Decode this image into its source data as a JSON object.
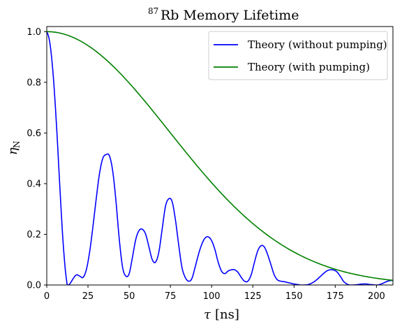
{
  "chart_data": {
    "type": "line",
    "title": {
      "superscript": "87",
      "text": "Rb Memory Lifetime"
    },
    "xlabel": {
      "symbol": "τ",
      "unit": "[ns]"
    },
    "ylabel": {
      "symbol": "η",
      "subscript": "N"
    },
    "xlim": [
      0,
      210
    ],
    "ylim": [
      0,
      1.02
    ],
    "x_ticks": [
      0,
      25,
      50,
      75,
      100,
      125,
      150,
      175,
      200
    ],
    "x_tick_labels": [
      "0",
      "25",
      "50",
      "75",
      "100",
      "125",
      "150",
      "175",
      "200"
    ],
    "y_ticks": [
      0,
      0.2,
      0.4,
      0.6,
      0.8,
      1.0
    ],
    "y_tick_labels": [
      "0.0",
      "0.2",
      "0.4",
      "0.6",
      "0.8",
      "1.0"
    ],
    "grid": false,
    "legend_position": "top-right",
    "series": [
      {
        "name": "Theory (without pumping)",
        "color": "#0000ff",
        "x": [
          0,
          2,
          4,
          6,
          8,
          10,
          12,
          13,
          14,
          16,
          18,
          20,
          22,
          24,
          26,
          28,
          30,
          32,
          34,
          36,
          38,
          40,
          42,
          44,
          46,
          48,
          50,
          52,
          54,
          56,
          58,
          60,
          62,
          64,
          66,
          68,
          70,
          72,
          74,
          76,
          78,
          80,
          82,
          84,
          86,
          88,
          90,
          92,
          94,
          96,
          98,
          100,
          102,
          104,
          106,
          108,
          110,
          112,
          114,
          116,
          118,
          120,
          122,
          124,
          126,
          128,
          130,
          132,
          134,
          136,
          138,
          140,
          142,
          144,
          146,
          148,
          150,
          152,
          154,
          156,
          158,
          160,
          162,
          164,
          166,
          168,
          170,
          172,
          174,
          176,
          178,
          180,
          182,
          184,
          186,
          188,
          190,
          192,
          194,
          196,
          198,
          200,
          202,
          204,
          206,
          208,
          210
        ],
        "y": [
          1.0,
          0.95,
          0.82,
          0.62,
          0.38,
          0.16,
          0.02,
          0.0,
          0.005,
          0.025,
          0.04,
          0.035,
          0.03,
          0.06,
          0.13,
          0.23,
          0.34,
          0.44,
          0.5,
          0.515,
          0.51,
          0.45,
          0.33,
          0.18,
          0.07,
          0.035,
          0.045,
          0.11,
          0.18,
          0.215,
          0.22,
          0.2,
          0.15,
          0.1,
          0.09,
          0.13,
          0.22,
          0.31,
          0.34,
          0.33,
          0.26,
          0.16,
          0.07,
          0.03,
          0.015,
          0.025,
          0.07,
          0.12,
          0.16,
          0.185,
          0.19,
          0.175,
          0.14,
          0.09,
          0.055,
          0.045,
          0.055,
          0.06,
          0.06,
          0.05,
          0.03,
          0.015,
          0.015,
          0.04,
          0.09,
          0.135,
          0.155,
          0.15,
          0.12,
          0.08,
          0.04,
          0.02,
          0.015,
          0.013,
          0.01,
          0.007,
          0.004,
          0.002,
          0.0,
          0.0,
          0.001,
          0.005,
          0.012,
          0.022,
          0.034,
          0.046,
          0.056,
          0.06,
          0.059,
          0.052,
          0.035,
          0.015,
          0.004,
          0.0,
          0.0,
          0.001,
          0.003,
          0.004,
          0.004,
          0.002,
          0.001,
          0.0,
          0.002,
          0.007,
          0.013,
          0.017,
          0.018
        ]
      },
      {
        "name": "Theory (with pumping)",
        "color": "#008000",
        "type": "gaussian",
        "tau_ns": 105
      }
    ]
  }
}
